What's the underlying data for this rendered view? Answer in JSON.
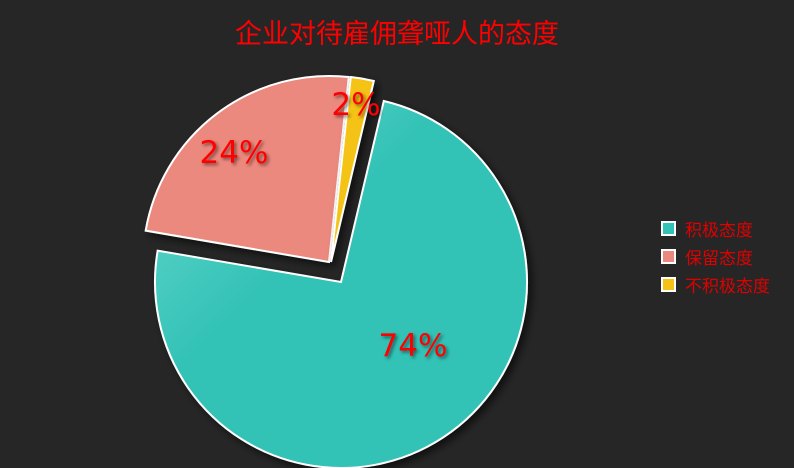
{
  "chart_data": {
    "type": "pie",
    "title": "企业对待雇佣聋哑人的态度",
    "categories": [
      "积极态度",
      "保留态度",
      "不积极态度"
    ],
    "values": [
      74,
      24,
      2
    ],
    "data_labels": [
      "74%",
      "24%",
      "2%"
    ],
    "colors": [
      "#33c2b6",
      "#ec897e",
      "#f5c218"
    ],
    "exploded": [
      false,
      true,
      true
    ],
    "legend_placement": "right",
    "background": "#262626",
    "text_color": "#ff0000"
  }
}
